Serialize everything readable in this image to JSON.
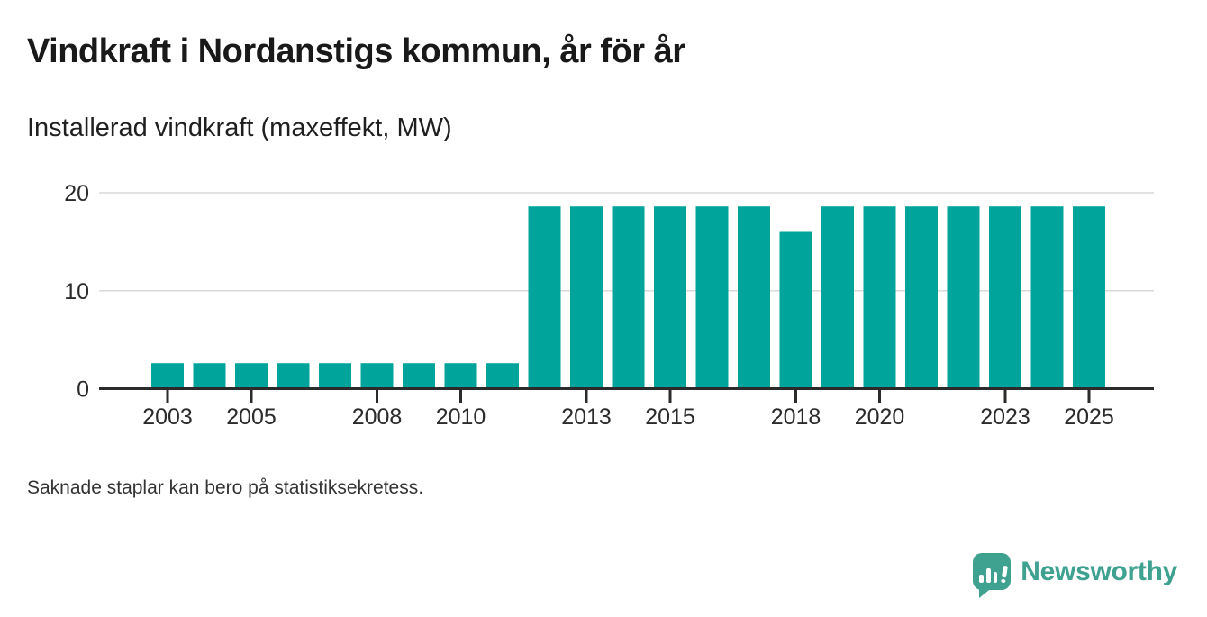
{
  "header": {
    "title": "Vindkraft i Nordanstigs kommun, år för år",
    "subtitle": "Installerad vindkraft (maxeffekt, MW)"
  },
  "footer": {
    "note": "Saknade staplar kan bero på statistiksekretess."
  },
  "branding": {
    "name": "Newsworthy",
    "icon": "newsworthy-speech-bubble-bar-chart-icon",
    "color": "#3fa190"
  },
  "chart_data": {
    "type": "bar",
    "title": "Vindkraft i Nordanstigs kommun, år för år",
    "subtitle": "Installerad vindkraft (maxeffekt, MW)",
    "xlabel": "",
    "ylabel": "Installerad vindkraft (maxeffekt, MW)",
    "unit": "MW",
    "categories": [
      2003,
      2004,
      2005,
      2006,
      2007,
      2008,
      2009,
      2010,
      2011,
      2012,
      2013,
      2014,
      2015,
      2016,
      2017,
      2018,
      2019,
      2020,
      2021,
      2022,
      2023,
      2024,
      2025
    ],
    "values": [
      2.6,
      2.6,
      2.6,
      2.6,
      2.6,
      2.6,
      2.6,
      2.6,
      2.6,
      18.6,
      18.6,
      18.6,
      18.6,
      18.6,
      18.6,
      16.0,
      18.6,
      18.6,
      18.6,
      18.6,
      18.6,
      18.6,
      18.6
    ],
    "ylim": [
      0,
      20
    ],
    "yticks": [
      0,
      10,
      20
    ],
    "xtick_labels": [
      "2003",
      "2005",
      "2008",
      "2010",
      "2013",
      "2015",
      "2018",
      "2020",
      "2023",
      "2025"
    ],
    "grid": true,
    "legend": "none",
    "bar_color": "#00a49b",
    "grid_color": "#d9d9d9",
    "axis_color": "#2b2b2b",
    "note": "Saknade staplar kan bero på statistiksekretess."
  }
}
